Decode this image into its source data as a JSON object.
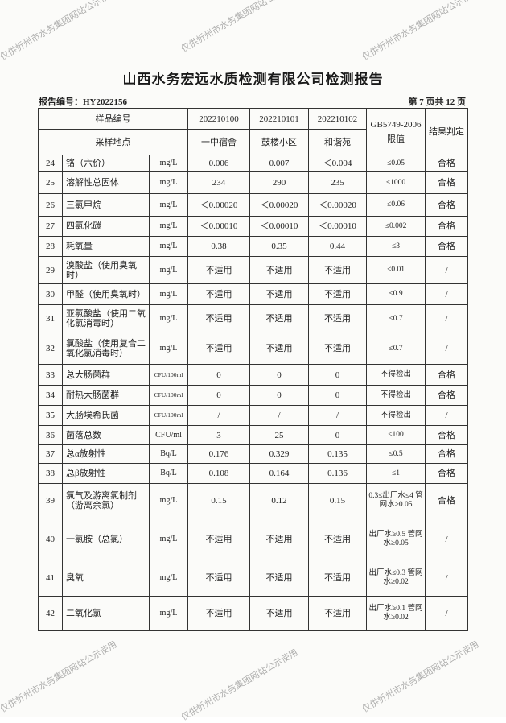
{
  "title": "山西水务宏远水质检测有限公司检测报告",
  "report_no": "报告编号：HY2022156",
  "page_info": "第 7 页共 12 页",
  "header": {
    "sample_no_label": "样品编号",
    "site_label": "采样地点",
    "samples": [
      {
        "no": "202210100",
        "site": "一中宿舍"
      },
      {
        "no": "202210101",
        "site": "鼓楼小区"
      },
      {
        "no": "202210102",
        "site": "和谐苑"
      }
    ],
    "standard": "GB5749-2006 限值",
    "result": "结果判定"
  },
  "rows": [
    {
      "n": "24",
      "name": "铬（六价）",
      "unit": "mg/L",
      "v": [
        "0.006",
        "0.007",
        "＜0.004"
      ],
      "std": "≤0.05",
      "res": "合格"
    },
    {
      "n": "25",
      "name": "溶解性总固体",
      "unit": "mg/L",
      "v": [
        "234",
        "290",
        "235"
      ],
      "std": "≤1000",
      "res": "合格"
    },
    {
      "n": "26",
      "name": "三氯甲烷",
      "unit": "mg/L",
      "v": [
        "＜0.00020",
        "＜0.00020",
        "＜0.00020"
      ],
      "std": "≤0.06",
      "res": "合格"
    },
    {
      "n": "27",
      "name": "四氯化碳",
      "unit": "mg/L",
      "v": [
        "＜0.00010",
        "＜0.00010",
        "＜0.00010"
      ],
      "std": "≤0.002",
      "res": "合格"
    },
    {
      "n": "28",
      "name": "耗氧量",
      "unit": "mg/L",
      "v": [
        "0.38",
        "0.35",
        "0.44"
      ],
      "std": "≤3",
      "res": "合格"
    },
    {
      "n": "29",
      "name": "溴酸盐（使用臭氧时）",
      "unit": "mg/L",
      "v": [
        "不适用",
        "不适用",
        "不适用"
      ],
      "std": "≤0.01",
      "res": "/"
    },
    {
      "n": "30",
      "name": "甲醛（使用臭氧时）",
      "unit": "mg/L",
      "v": [
        "不适用",
        "不适用",
        "不适用"
      ],
      "std": "≤0.9",
      "res": "/"
    },
    {
      "n": "31",
      "name": "亚氯酸盐（使用二氧化氯消毒时）",
      "unit": "mg/L",
      "v": [
        "不适用",
        "不适用",
        "不适用"
      ],
      "std": "≤0.7",
      "res": "/"
    },
    {
      "n": "32",
      "name": "氯酸盐（使用复合二氧化氯消毒时）",
      "unit": "mg/L",
      "v": [
        "不适用",
        "不适用",
        "不适用"
      ],
      "std": "≤0.7",
      "res": "/"
    },
    {
      "n": "33",
      "name": "总大肠菌群",
      "unit": "CFU/100ml",
      "v": [
        "0",
        "0",
        "0"
      ],
      "std": "不得检出",
      "res": "合格"
    },
    {
      "n": "34",
      "name": "耐热大肠菌群",
      "unit": "CFU/100ml",
      "v": [
        "0",
        "0",
        "0"
      ],
      "std": "不得检出",
      "res": "合格"
    },
    {
      "n": "35",
      "name": "大肠埃希氏菌",
      "unit": "CFU/100ml",
      "v": [
        "/",
        "/",
        "/"
      ],
      "std": "不得检出",
      "res": "/"
    },
    {
      "n": "36",
      "name": "菌落总数",
      "unit": "CFU/ml",
      "v": [
        "3",
        "25",
        "0"
      ],
      "std": "≤100",
      "res": "合格"
    },
    {
      "n": "37",
      "name": "总α放射性",
      "unit": "Bq/L",
      "v": [
        "0.176",
        "0.329",
        "0.135"
      ],
      "std": "≤0.5",
      "res": "合格"
    },
    {
      "n": "38",
      "name": "总β放射性",
      "unit": "Bq/L",
      "v": [
        "0.108",
        "0.164",
        "0.136"
      ],
      "std": "≤1",
      "res": "合格"
    },
    {
      "n": "39",
      "name": "氯气及游离氯制剂（游离余氯）",
      "unit": "mg/L",
      "v": [
        "0.15",
        "0.12",
        "0.15"
      ],
      "std": "0.3≤出厂水≤4 管网水≥0.05",
      "res": "合格"
    },
    {
      "n": "40",
      "name": "一氯胺（总氯）",
      "unit": "mg/L",
      "v": [
        "不适用",
        "不适用",
        "不适用"
      ],
      "std": "出厂水≥0.5 管网水≥0.05",
      "res": "/"
    },
    {
      "n": "41",
      "name": "臭氧",
      "unit": "mg/L",
      "v": [
        "不适用",
        "不适用",
        "不适用"
      ],
      "std": "出厂水≤0.3 管网水≥0.02",
      "res": "/"
    },
    {
      "n": "42",
      "name": "二氧化氯",
      "unit": "mg/L",
      "v": [
        "不适用",
        "不适用",
        "不适用"
      ],
      "std": "出厂水≥0.1 管网水≥0.02",
      "res": "/"
    }
  ],
  "watermark": "仅供忻州市水务集团网站公示使用"
}
